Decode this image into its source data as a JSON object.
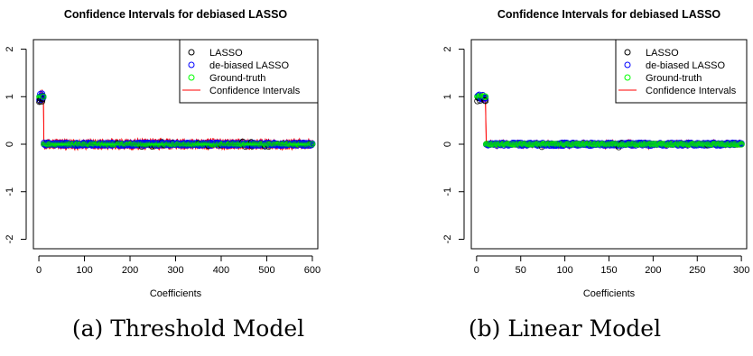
{
  "captions": {
    "a": "(a) Threshold Model",
    "b": "(b) Linear Model"
  },
  "colors": {
    "lasso": "#000000",
    "debiased": "#0000ff",
    "truth": "#00ff00",
    "ci": "#ff0000"
  },
  "chart_data": [
    {
      "type": "scatter",
      "title": "Confidence Intervals for debiased LASSO",
      "xlabel": "Coefficients",
      "ylabel": "",
      "xlim": [
        -12,
        612
      ],
      "ylim": [
        -2.2,
        2.2
      ],
      "xticks": [
        0,
        100,
        200,
        300,
        400,
        500,
        600
      ],
      "yticks": [
        -2,
        -1,
        0,
        1,
        2
      ],
      "n_coefficients": 600,
      "n_nonzero": 10,
      "true_nonzero_value": 1,
      "true_zero_value": 0,
      "ci_halfwidth_approx": 0.07,
      "legend": [
        "LASSO",
        "de-biased LASSO",
        "Ground-truth",
        "Confidence Intervals"
      ],
      "legend_position": "top-right",
      "grid": false
    },
    {
      "type": "scatter",
      "title": "Confidence Intervals for debiased LASSO",
      "xlabel": "Coefficients",
      "ylabel": "",
      "xlim": [
        -6,
        306
      ],
      "ylim": [
        -2.2,
        2.2
      ],
      "xticks": [
        0,
        50,
        100,
        150,
        200,
        250,
        300
      ],
      "yticks": [
        -2,
        -1,
        0,
        1,
        2
      ],
      "n_coefficients": 300,
      "n_nonzero": 10,
      "true_nonzero_value": 1,
      "true_zero_value": 0,
      "ci_halfwidth_approx": 0.05,
      "legend": [
        "LASSO",
        "de-biased LASSO",
        "Ground-truth",
        "Confidence Intervals"
      ],
      "legend_position": "top-right",
      "grid": false
    }
  ]
}
